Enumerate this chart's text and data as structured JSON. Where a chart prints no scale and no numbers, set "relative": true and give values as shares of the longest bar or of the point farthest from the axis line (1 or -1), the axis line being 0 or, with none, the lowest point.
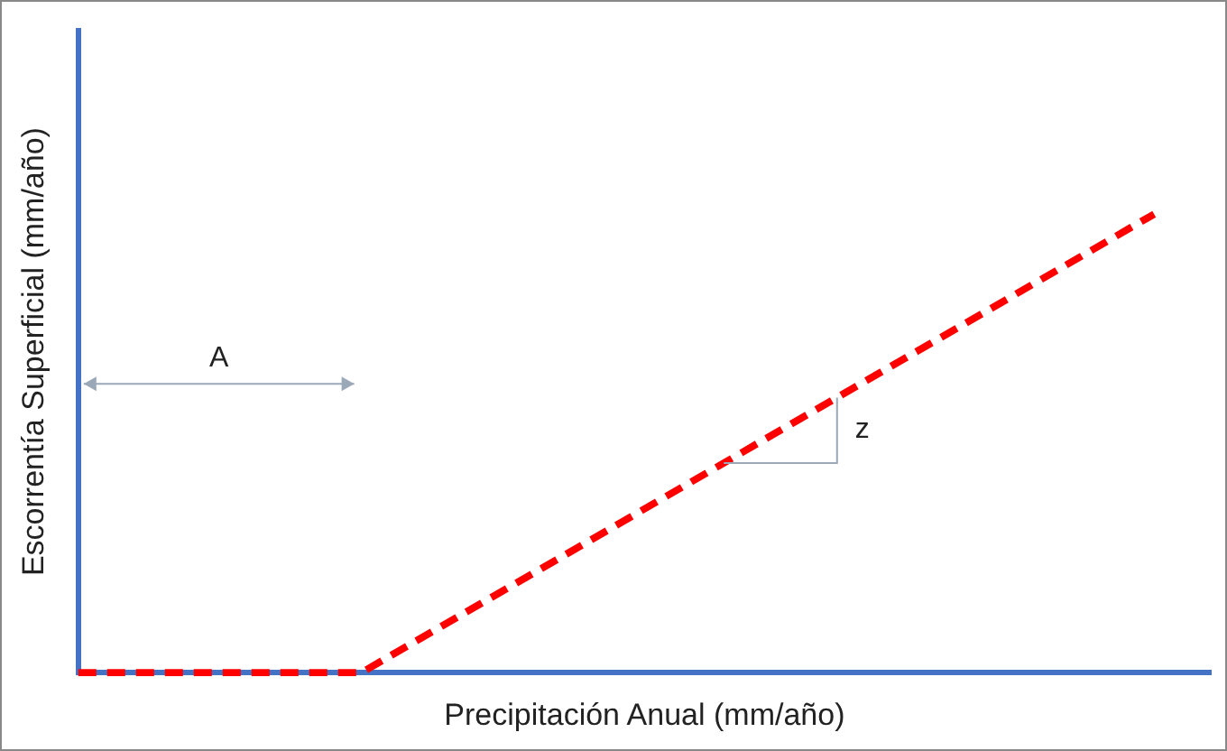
{
  "chart_data": {
    "type": "line",
    "relative": true,
    "xlabel": "Precipitación Anual (mm/año)",
    "ylabel": "Escorrentía Superficial (mm/año)",
    "annotations": [
      "A",
      "z"
    ],
    "categories": [
      null,
      null,
      null,
      null,
      null,
      null,
      null,
      null,
      null,
      null,
      null,
      null,
      null,
      null,
      null,
      null,
      null,
      null,
      null,
      null,
      null
    ],
    "series": [
      {
        "color": "#ff0000",
        "values": [
          0,
          null,
          null,
          null,
          null,
          0,
          null,
          null,
          null,
          null,
          null,
          null,
          null,
          null,
          null,
          null,
          null,
          null,
          null,
          1,
          null
        ]
      }
    ],
    "line_style": "dashed",
    "marker": "none",
    "grid": false,
    "legend": false,
    "tick_labels": false
  }
}
